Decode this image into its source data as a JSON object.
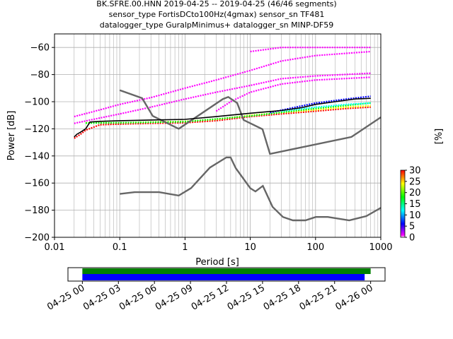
{
  "header": {
    "title_line1": "BK.SFRE.00.HNN   2019-04-25 -- 2019-04-25  (46/46 segments)",
    "title_line2": "sensor_type FortisDCto100Hz(4gmax) sensor_sn TF481",
    "title_line3": "datalogger_type GuralpMinimus+ datalogger_sn MINP-DF59"
  },
  "chart_data": [
    {
      "type": "heatmap",
      "title": "BK.SFRE.00.HNN   2019-04-25 -- 2019-04-25  (46/46 segments)",
      "xlabel": "Period [s]",
      "ylabel": "Power [dB]",
      "xscale": "log",
      "xlim": [
        0.01,
        1000
      ],
      "ylim": [
        -200,
        -50
      ],
      "x_ticks": [
        0.01,
        0.1,
        1,
        10,
        100,
        1000
      ],
      "x_tick_labels": [
        "0.01",
        "0.1",
        "1",
        "10",
        "100",
        "1000"
      ],
      "y_ticks": [
        -200,
        -180,
        -160,
        -140,
        -120,
        -100,
        -80,
        -60
      ],
      "y_tick_labels": [
        "−200",
        "−180",
        "−160",
        "−140",
        "−120",
        "−100",
        "−80",
        "−60"
      ],
      "grid": true,
      "colorbar": {
        "label": "[%]",
        "range": [
          0,
          30
        ],
        "ticks": [
          0,
          5,
          10,
          15,
          20,
          25,
          30
        ],
        "tick_labels": [
          "0",
          "5",
          "10",
          "15",
          "20",
          "25",
          "30"
        ],
        "colors": [
          "#ffffff",
          "#ff00ff",
          "#0000ff",
          "#00ffff",
          "#00ff00",
          "#ffff00",
          "#ff0000"
        ]
      },
      "series": [
        {
          "kind": "noise-model",
          "color": "#666666",
          "x": [
            0.1,
            0.17,
            0.4,
            0.8,
            1.24,
            2.4,
            4.3,
            5,
            6,
            10,
            12,
            15.6,
            21.9,
            31.6,
            45,
            70,
            101,
            154,
            328,
            600,
            1000
          ],
          "y": [
            -168,
            -166.7,
            -166.7,
            -169.2,
            -163.7,
            -148.6,
            -141.1,
            -141.1,
            -149.0,
            -163.8,
            -166.2,
            -162.1,
            -177.5,
            -185.0,
            -187.5,
            -187.5,
            -185.0,
            -185.0,
            -187.5,
            -184.4,
            -178.3
          ]
        },
        {
          "kind": "noise-model",
          "color": "#666666",
          "x": [
            0.1,
            0.22,
            0.32,
            0.8,
            3.8,
            4.6,
            6.3,
            7.9,
            15.4,
            20,
            354.8,
            1000
          ],
          "y": [
            -91.5,
            -97.4,
            -110.5,
            -120.0,
            -98.0,
            -96.5,
            -101.0,
            -113.5,
            -120.3,
            -138.5,
            -126.0,
            -111.5
          ]
        },
        {
          "kind": "mean",
          "color": "#000000",
          "x": [
            0.02,
            0.022,
            0.025,
            0.03,
            0.035,
            0.05,
            0.1,
            0.3,
            1,
            3,
            10,
            30,
            60,
            100,
            200,
            400,
            700
          ],
          "y": [
            -126,
            -124,
            -122.5,
            -120,
            -115,
            -114.5,
            -114,
            -113.5,
            -113,
            -111,
            -108.5,
            -106.5,
            -104.5,
            -102,
            -100,
            -98,
            -97.5
          ]
        },
        {
          "kind": "density",
          "color": "#ff0000",
          "x": [
            0.02,
            0.025,
            0.03,
            0.05,
            0.1,
            0.3,
            1,
            3,
            10,
            30,
            100,
            300,
            700
          ],
          "y": [
            -127,
            -124,
            -121,
            -117,
            -116.5,
            -116,
            -115.5,
            -114,
            -111,
            -109,
            -107,
            -105,
            -104
          ]
        },
        {
          "kind": "density",
          "color": "#ffff00",
          "x": [
            0.03,
            0.1,
            0.3,
            1,
            3,
            10,
            30,
            100,
            300,
            700
          ],
          "y": [
            -115.5,
            -115.5,
            -115,
            -114.5,
            -113,
            -110,
            -108,
            -106,
            -104,
            -103
          ]
        },
        {
          "kind": "density",
          "color": "#00ff00",
          "x": [
            0.03,
            0.1,
            1,
            10,
            100,
            700
          ],
          "y": [
            -115.8,
            -115.5,
            -114.8,
            -110.5,
            -105,
            -101
          ]
        },
        {
          "kind": "density",
          "color": "#00ffff",
          "x": [
            30,
            100,
            300,
            700
          ],
          "y": [
            -107,
            -104,
            -102,
            -101
          ]
        },
        {
          "kind": "density",
          "color": "#0000ff",
          "x": [
            20,
            50,
            100,
            300,
            700
          ],
          "y": [
            -108,
            -104,
            -101,
            -98,
            -96
          ]
        },
        {
          "kind": "density",
          "color": "#ff00ff",
          "x": [
            0.02,
            0.05,
            0.1,
            0.3,
            1,
            3,
            10,
            30,
            100,
            700
          ],
          "y": [
            -116,
            -112,
            -109,
            -104,
            -98,
            -93,
            -88,
            -83,
            -81,
            -79
          ]
        },
        {
          "kind": "density",
          "color": "#ff00ff",
          "x": [
            0.02,
            0.05,
            0.1,
            0.3,
            1,
            3,
            10,
            30,
            100,
            700
          ],
          "y": [
            -111,
            -106,
            -102,
            -97,
            -90,
            -84,
            -77,
            -70,
            -66,
            -63
          ]
        },
        {
          "kind": "density",
          "color": "#ff00ff",
          "x": [
            3,
            5,
            10,
            30,
            100,
            700
          ],
          "y": [
            -107,
            -100,
            -93,
            -87,
            -84,
            -82
          ]
        },
        {
          "kind": "density",
          "color": "#ff00ff",
          "x": [
            10,
            30,
            100,
            300,
            700
          ],
          "y": [
            -63,
            -60,
            -60,
            -60,
            -60
          ]
        }
      ]
    },
    {
      "type": "bar",
      "title": "",
      "xlabel": "",
      "ylabel": "",
      "x_tick_labels": [
        "04-25 00",
        "04-25 03",
        "04-25 06",
        "04-25 09",
        "04-25 12",
        "04-25 15",
        "04-25 18",
        "04-25 21",
        "04-26 00"
      ],
      "xlim_hours": [
        -1.2,
        25.2
      ],
      "bars": [
        {
          "name": "",
          "color": "#008000",
          "start_hour": 0.0,
          "end_hour": 24.0
        },
        {
          "name": "",
          "color": "#0000ff",
          "start_hour": 0.0,
          "end_hour": 23.5
        }
      ]
    }
  ]
}
